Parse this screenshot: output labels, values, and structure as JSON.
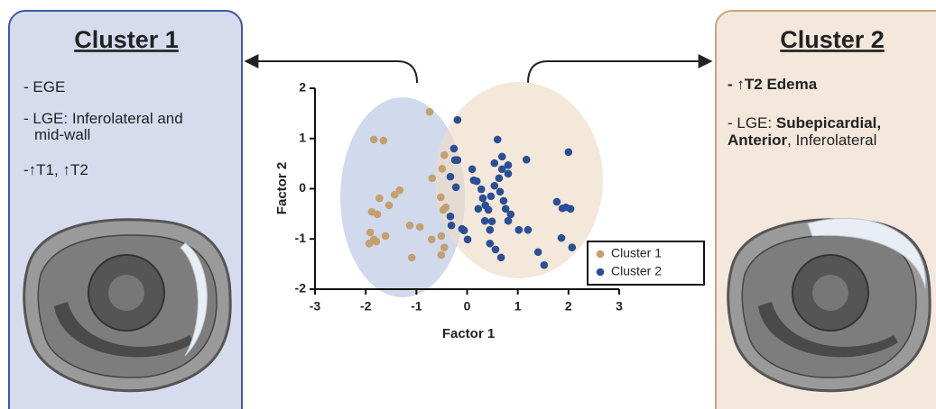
{
  "panels": [
    {
      "title": "Cluster 1",
      "lines": [
        [
          {
            "text": "- EGE",
            "bold": false
          }
        ],
        [
          {
            "text": "- LGE: Inferolateral and",
            "bold": false
          }
        ],
        [
          {
            "text": "mid-wall",
            "bold": false
          }
        ],
        [
          {
            "text": "-↑T1, ↑T2",
            "bold": false
          }
        ]
      ]
    },
    {
      "title": "Cluster 2",
      "lines": [
        [
          {
            "text": "- ↑T2 Edema",
            "bold": true
          }
        ],
        [
          {
            "text": "- LGE: ",
            "bold": false
          },
          {
            "text": "Subepicardial,",
            "bold": true
          }
        ],
        [
          {
            "text": "Anterior",
            "bold": true
          },
          {
            "text": ", Inferolateral",
            "bold": false
          }
        ]
      ]
    }
  ],
  "chart_data": {
    "type": "scatter",
    "x_label": "Factor 1",
    "y_label": "Factor 2",
    "xlim": [
      -3,
      3
    ],
    "ylim": [
      -2,
      2
    ],
    "xticks": [
      -3,
      -2,
      -1,
      0,
      1,
      2,
      3
    ],
    "yticks": [
      -2,
      -1,
      0,
      1,
      2
    ],
    "legend": "lower right",
    "series": [
      {
        "name": "Cluster 1",
        "color": "#c4a06e",
        "x": [
          -1.84,
          -1.65,
          -0.74,
          -1.33,
          -1.43,
          -1.54,
          -1.73,
          -1.88,
          -1.77,
          -1.91,
          -1.84,
          -1.79,
          -1.61,
          -1.93,
          -1.13,
          -0.93,
          -1.09,
          -0.7,
          -0.51,
          -0.51,
          -0.45,
          -0.49,
          -0.69,
          -0.52,
          -0.47,
          -0.42,
          -0.45
        ],
        "values": [
          0.98,
          0.96,
          1.53,
          -0.03,
          -0.12,
          -0.33,
          -0.19,
          -0.46,
          -0.51,
          -0.87,
          -1.01,
          -1.05,
          -0.94,
          -1.09,
          -0.73,
          -0.76,
          -1.37,
          -1.01,
          -0.94,
          -1.32,
          0.67,
          0.4,
          0.21,
          -0.17,
          -0.42,
          -0.37,
          -1.17
        ]
      },
      {
        "name": "Cluster 2",
        "color": "#2a4f97",
        "x": [
          -0.19,
          -0.26,
          -0.24,
          -0.19,
          -0.33,
          -0.22,
          -0.33,
          -0.1,
          0.01,
          -0.06,
          -0.31,
          0.1,
          0.13,
          0.19,
          0.28,
          0.36,
          0.31,
          0.42,
          0.35,
          0.47,
          0.6,
          0.54,
          0.69,
          0.69,
          0.81,
          0.81,
          0.63,
          0.54,
          0.65,
          0.72,
          0.76,
          0.86,
          0.81,
          0.49,
          0.45,
          0.56,
          0.67,
          1.02,
          1.17,
          1.2,
          1.4,
          1.52,
          1.77,
          1.88,
          1.95,
          2.04,
          1.86,
          2.0,
          2.07,
          0.22,
          0.45
        ],
        "values": [
          1.37,
          0.8,
          0.57,
          0.57,
          0.24,
          0.03,
          -0.55,
          -0.8,
          -1.01,
          -0.83,
          -0.73,
          0.39,
          0.17,
          0.15,
          -0.01,
          -0.33,
          -0.19,
          -0.42,
          -0.64,
          -0.15,
          0.98,
          0.51,
          0.64,
          0.39,
          0.47,
          0.3,
          0.21,
          0.06,
          -0.06,
          -0.24,
          -0.4,
          -0.51,
          -0.64,
          -0.65,
          -1.09,
          -1.21,
          -1.37,
          -0.82,
          0.58,
          -0.82,
          -1.26,
          -1.52,
          -0.26,
          -0.39,
          -0.37,
          -0.4,
          -0.98,
          0.73,
          -1.17,
          -0.4,
          -0.82
        ]
      }
    ]
  }
}
